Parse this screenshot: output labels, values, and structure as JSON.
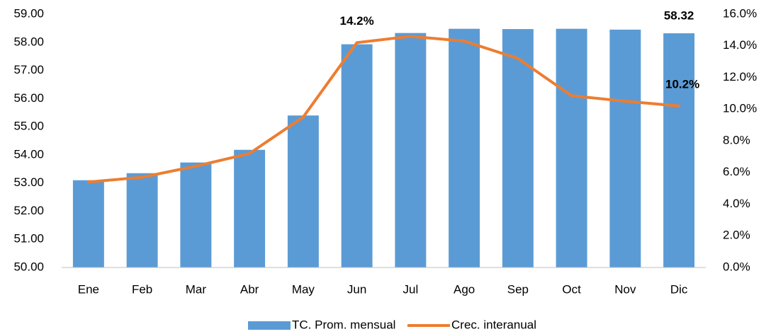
{
  "chart_data": {
    "type": "bar_line",
    "categories": [
      "Ene",
      "Feb",
      "Mar",
      "Abr",
      "May",
      "Jun",
      "Jul",
      "Ago",
      "Sep",
      "Oct",
      "Nov",
      "Dic"
    ],
    "series": [
      {
        "name": "TC. Prom. mensual",
        "type": "bar",
        "color": "#5b9bd5",
        "values": [
          53.1,
          53.35,
          53.73,
          54.18,
          55.4,
          57.93,
          58.33,
          58.48,
          58.47,
          58.48,
          58.45,
          58.32
        ],
        "value_labels": [
          null,
          null,
          null,
          null,
          null,
          null,
          null,
          null,
          null,
          null,
          null,
          "58.32"
        ]
      },
      {
        "name": "Crec. interanual",
        "type": "line",
        "axis": "y2",
        "color": "#ed7d31",
        "values": [
          5.4,
          5.7,
          6.4,
          7.2,
          9.5,
          14.2,
          14.6,
          14.3,
          13.2,
          10.85,
          10.5,
          10.2
        ],
        "value_labels": [
          null,
          null,
          null,
          null,
          null,
          "14.2%",
          null,
          null,
          null,
          null,
          null,
          "10.2%"
        ]
      }
    ],
    "ylim": [
      50,
      59
    ],
    "yticks": [
      {
        "value": 50,
        "label": "50.00"
      },
      {
        "value": 51,
        "label": "51.00"
      },
      {
        "value": 52,
        "label": "52.00"
      },
      {
        "value": 53,
        "label": "53.00"
      },
      {
        "value": 54,
        "label": "54.00"
      },
      {
        "value": 55,
        "label": "55.00"
      },
      {
        "value": 56,
        "label": "56.00"
      },
      {
        "value": 57,
        "label": "57.00"
      },
      {
        "value": 58,
        "label": "58.00"
      },
      {
        "value": 59,
        "label": "59.00"
      }
    ],
    "y2lim": [
      0,
      16
    ],
    "y2ticks": [
      {
        "value": 0,
        "label": "0.0%"
      },
      {
        "value": 2,
        "label": "2.0%"
      },
      {
        "value": 4,
        "label": "4.0%"
      },
      {
        "value": 6,
        "label": "6.0%"
      },
      {
        "value": 8,
        "label": "8.0%"
      },
      {
        "value": 10,
        "label": "10.0%"
      },
      {
        "value": 12,
        "label": "12.0%"
      },
      {
        "value": 14,
        "label": "14.0%"
      },
      {
        "value": 16,
        "label": "16.0%"
      }
    ],
    "legend": "bottom"
  }
}
